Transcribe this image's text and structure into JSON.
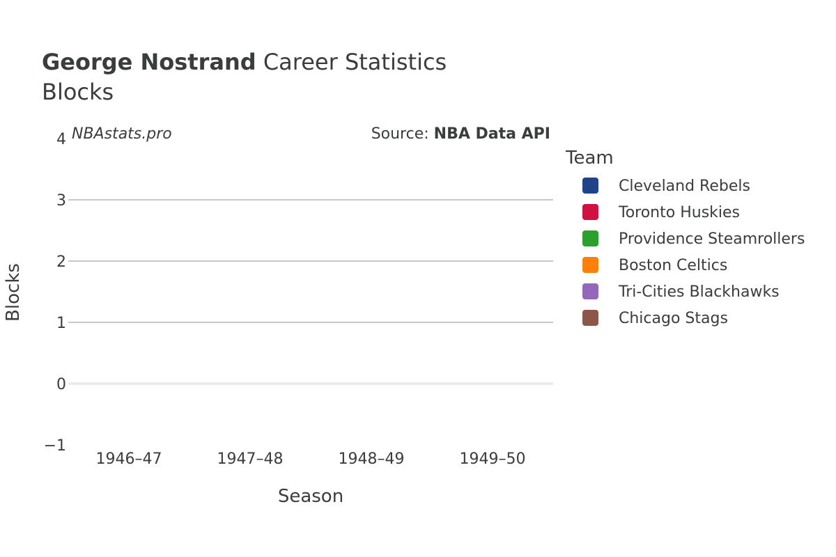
{
  "chart_data": {
    "type": "bar",
    "title_bold": "George Nostrand",
    "title_rest": " Career Statistics",
    "subtitle": "Blocks",
    "xlabel": "Season",
    "ylabel": "Blocks",
    "categories": [
      "1946–47",
      "1947–48",
      "1948–49",
      "1949–50"
    ],
    "ylim": [
      -1,
      4
    ],
    "yticks": [
      -1,
      0,
      1,
      2,
      3,
      4
    ],
    "ytick_labels": [
      "−1",
      "0",
      "1",
      "2",
      "3",
      "4"
    ],
    "grid": true,
    "legend_title": "Team",
    "legend_position": "right",
    "series": [
      {
        "name": "Cleveland Rebels",
        "color": "#1f4388",
        "values": [
          null,
          null,
          null,
          null
        ]
      },
      {
        "name": "Toronto Huskies",
        "color": "#ce1141",
        "values": [
          null,
          null,
          null,
          null
        ]
      },
      {
        "name": "Providence Steamrollers",
        "color": "#2ca02c",
        "values": [
          null,
          null,
          null,
          null
        ]
      },
      {
        "name": "Boston Celtics",
        "color": "#ff7f0e",
        "values": [
          null,
          null,
          null,
          null
        ]
      },
      {
        "name": "Tri-Cities Blackhawks",
        "color": "#9467bd",
        "values": [
          null,
          null,
          null,
          null
        ]
      },
      {
        "name": "Chicago Stags",
        "color": "#8c564b",
        "values": [
          null,
          null,
          null,
          null
        ]
      }
    ],
    "watermark": "NBAstats.pro",
    "source_prefix": "Source: ",
    "source_name": "NBA Data API"
  }
}
